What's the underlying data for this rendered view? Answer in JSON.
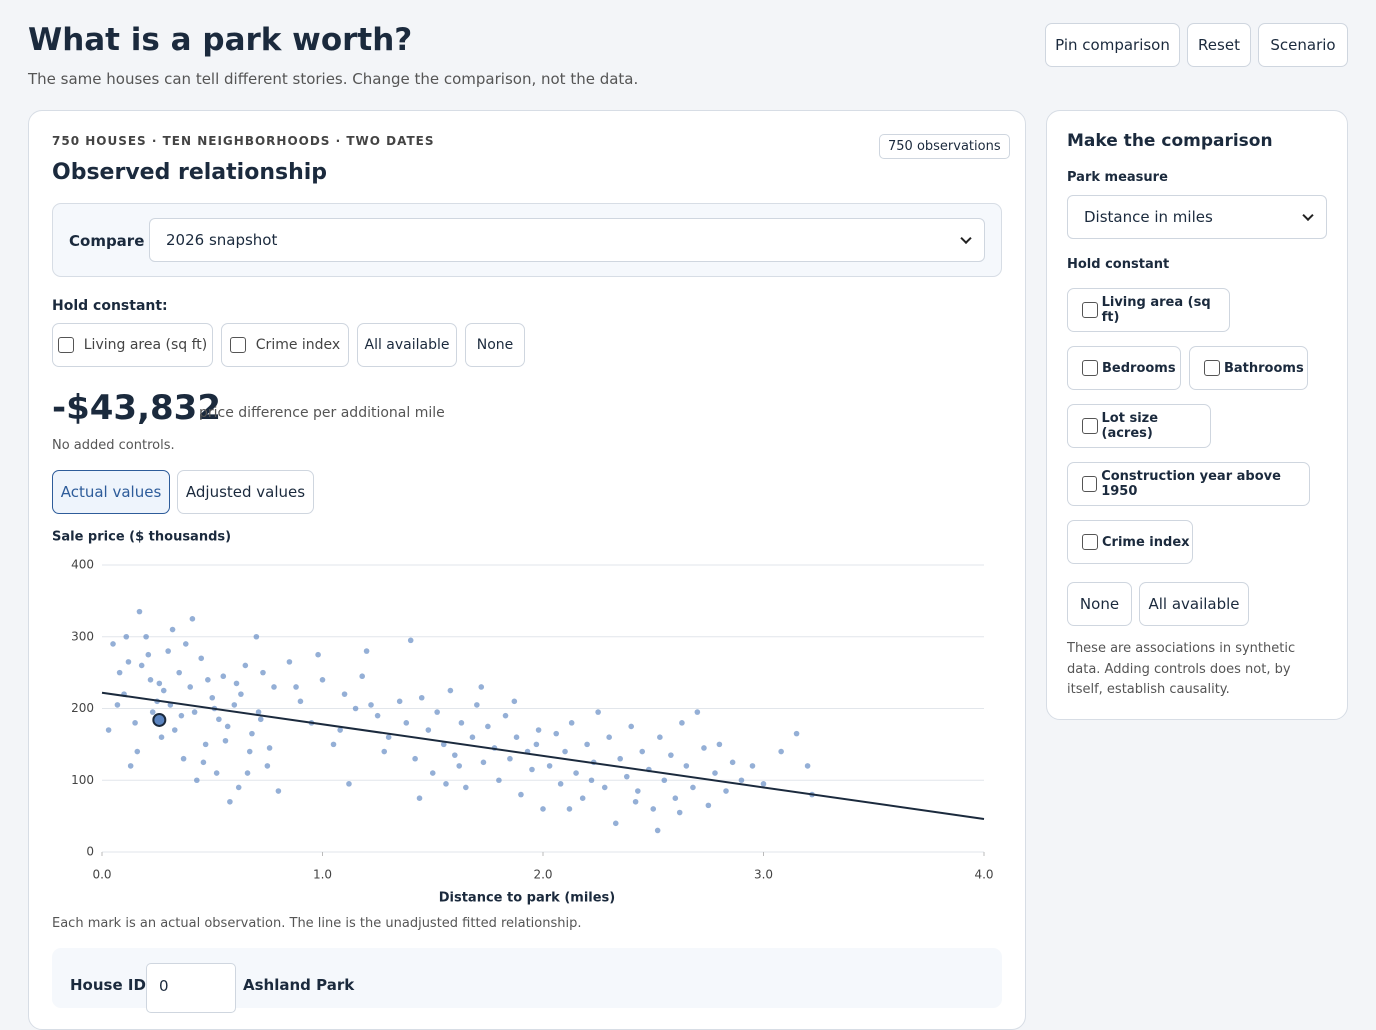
{
  "header": {
    "title": "What is a park worth?",
    "subtitle": "The same houses can tell different stories. Change the comparison, not the data.",
    "buttons": [
      "Pin comparison",
      "Reset",
      "Scenario"
    ]
  },
  "main": {
    "eyebrow": "750 HOUSES · TEN NEIGHBORHOODS · TWO DATES",
    "badge": "750 observations",
    "heading": "Observed relationship",
    "compare_label": "Compare",
    "compare_value": "2026 snapshot",
    "hold_label": "Hold constant:",
    "hold_options": [
      "Living area (sq ft)",
      "Crime index"
    ],
    "hold_buttons": [
      "All available",
      "None"
    ],
    "estimate": "-$43,832",
    "estimate_note": "price difference per additional mile",
    "controls_note": "No added controls.",
    "view_buttons": [
      "Actual values",
      "Adjusted values"
    ],
    "caption": "Each mark is an actual observation. The line is the unadjusted fitted relationship.",
    "house_label": "House ID",
    "house_id": "0",
    "house_name": "Ashland Park"
  },
  "chart_data": {
    "type": "scatter",
    "y_label": "Sale price ($ thousands)",
    "x_label": "Distance to park (miles)",
    "xlim": [
      0,
      4
    ],
    "ylim": [
      0,
      400
    ],
    "xticks": [
      {
        "value": 0,
        "label": "0.0"
      },
      {
        "value": 1,
        "label": "1.0"
      },
      {
        "value": 2,
        "label": "2.0"
      },
      {
        "value": 3,
        "label": "3.0"
      },
      {
        "value": 4,
        "label": "4.0"
      }
    ],
    "yticks": [
      0,
      100,
      200,
      300,
      400
    ],
    "grid": true,
    "series": [
      {
        "color": "#5b84c0",
        "x": [
          0.05,
          0.08,
          0.1,
          0.12,
          0.15,
          0.17,
          0.2,
          0.22,
          0.25,
          0.27,
          0.3,
          0.32,
          0.35,
          0.37,
          0.4,
          0.42,
          0.45,
          0.47,
          0.5,
          0.52,
          0.55,
          0.57,
          0.6,
          0.62,
          0.65,
          0.67,
          0.7,
          0.72,
          0.75,
          0.78,
          0.03,
          0.07,
          0.13,
          0.18,
          0.23,
          0.28,
          0.33,
          0.38,
          0.43,
          0.48,
          0.53,
          0.58,
          0.63,
          0.68,
          0.73,
          0.8,
          0.11,
          0.16,
          0.21,
          0.26,
          0.31,
          0.36,
          0.41,
          0.46,
          0.51,
          0.56,
          0.61,
          0.66,
          0.71,
          0.76,
          0.85,
          0.9,
          0.95,
          1.0,
          1.05,
          1.1,
          1.15,
          1.2,
          1.25,
          1.3,
          1.35,
          1.4,
          0.88,
          0.98,
          1.08,
          1.12,
          1.18,
          1.22,
          1.28,
          1.38,
          1.42,
          1.45,
          1.48,
          1.5,
          1.52,
          1.55,
          1.58,
          1.6,
          1.63,
          1.65,
          1.68,
          1.7,
          1.73,
          1.75,
          1.78,
          1.8,
          1.83,
          1.85,
          1.88,
          1.9,
          1.93,
          1.95,
          1.98,
          2.0,
          1.44,
          1.62,
          1.72,
          1.87,
          1.97,
          1.56,
          2.03,
          2.06,
          2.08,
          2.1,
          2.13,
          2.15,
          2.18,
          2.2,
          2.23,
          2.25,
          2.28,
          2.3,
          2.33,
          2.35,
          2.38,
          2.4,
          2.43,
          2.45,
          2.48,
          2.5,
          2.53,
          2.55,
          2.58,
          2.6,
          2.63,
          2.65,
          2.68,
          2.7,
          2.73,
          2.75,
          2.78,
          2.8,
          2.83,
          2.86,
          2.9,
          2.52,
          2.42,
          2.62,
          2.12,
          2.22,
          2.95,
          3.0,
          3.08,
          3.15,
          3.2,
          3.22
        ],
        "values": [
          290,
          250,
          220,
          265,
          180,
          335,
          300,
          240,
          210,
          160,
          280,
          310,
          250,
          130,
          230,
          195,
          270,
          150,
          215,
          110,
          245,
          175,
          205,
          90,
          260,
          140,
          300,
          185,
          120,
          230,
          170,
          205,
          120,
          260,
          195,
          225,
          170,
          290,
          100,
          240,
          185,
          70,
          220,
          165,
          250,
          85,
          300,
          140,
          275,
          235,
          205,
          190,
          325,
          125,
          200,
          155,
          235,
          110,
          195,
          145,
          265,
          210,
          180,
          240,
          150,
          220,
          200,
          280,
          190,
          160,
          210,
          295,
          230,
          275,
          170,
          95,
          245,
          205,
          140,
          180,
          130,
          215,
          170,
          110,
          195,
          150,
          225,
          135,
          180,
          90,
          160,
          205,
          125,
          175,
          145,
          100,
          190,
          130,
          160,
          80,
          140,
          115,
          170,
          60,
          75,
          120,
          230,
          210,
          150,
          95,
          120,
          165,
          95,
          140,
          180,
          110,
          75,
          150,
          125,
          195,
          90,
          160,
          40,
          130,
          105,
          175,
          85,
          140,
          115,
          60,
          160,
          100,
          135,
          75,
          180,
          120,
          90,
          195,
          145,
          65,
          110,
          150,
          85,
          125,
          100,
          30,
          70,
          55,
          60,
          100,
          120,
          95,
          140,
          165,
          120,
          80
        ]
      }
    ],
    "fit": {
      "x": [
        0,
        4
      ],
      "values": [
        222,
        46
      ]
    },
    "highlight": {
      "x": 0.26,
      "values": 184
    }
  },
  "sidebar": {
    "heading": "Make the comparison",
    "measure_label": "Park measure",
    "measure_value": "Distance in miles",
    "hold_label": "Hold constant",
    "options": [
      "Living area (sq ft)",
      "Bedrooms",
      "Bathrooms",
      "Lot size (acres)",
      "Construction year above 1950",
      "Crime index"
    ],
    "buttons": [
      "None",
      "All available"
    ],
    "note": "These are associations in synthetic data. Adding controls does not, by itself, establish causality."
  }
}
